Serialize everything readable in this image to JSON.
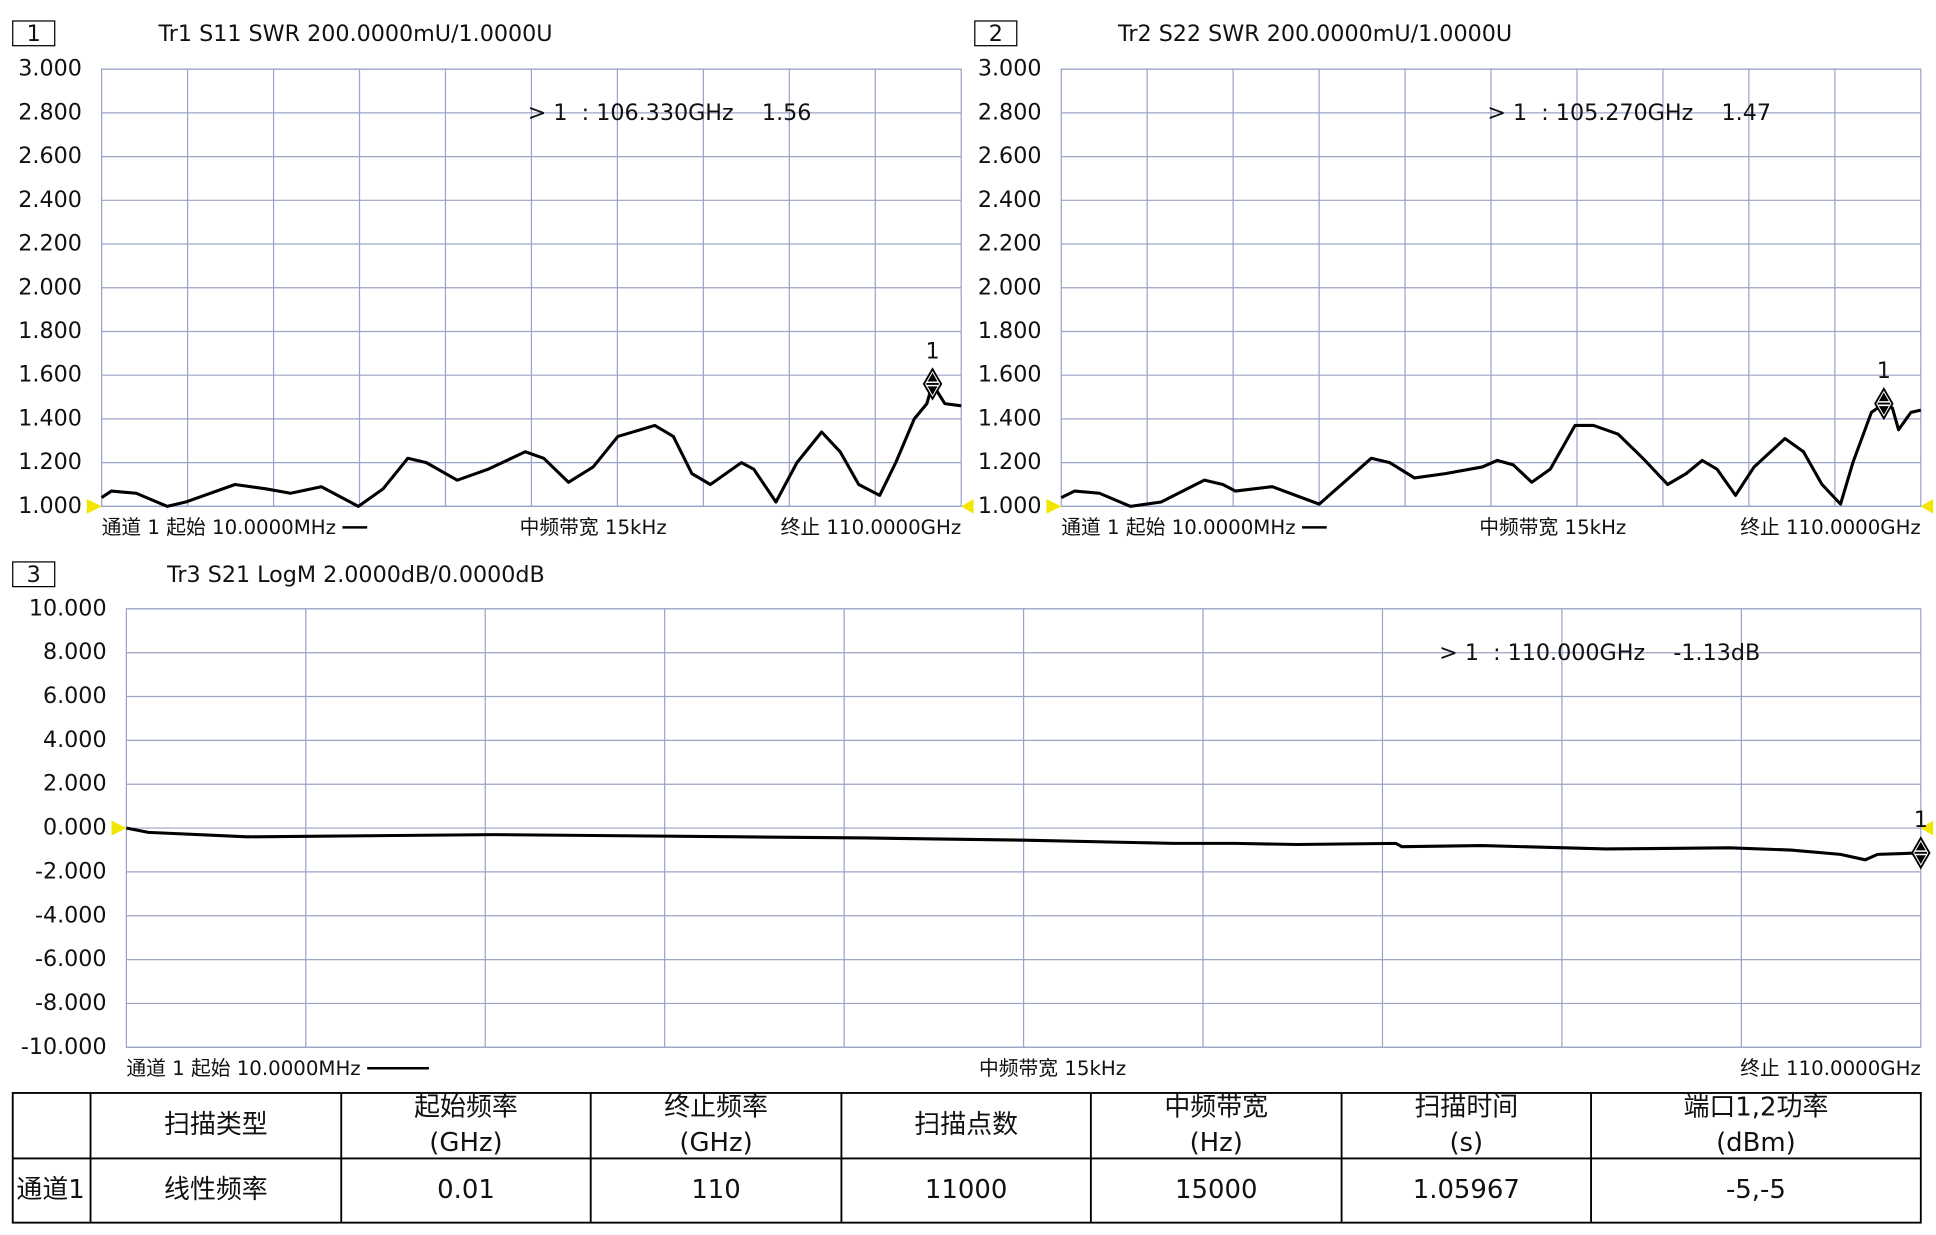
{
  "chart_data": [
    {
      "type": "line",
      "panel": "1",
      "title": "Tr1 S11 SWR 200.0000mU/1.0000U",
      "x_labels": {
        "start": "通道 1 起始 10.0000MHz",
        "center": "中频带宽 15kHz",
        "end": "终止 110.0000GHz"
      },
      "color": "#000000",
      "grid": true,
      "xlim": [
        0.01,
        110
      ],
      "ylim": [
        1,
        3
      ],
      "yticks": [
        {
          "value": 1,
          "label": "1.000"
        },
        {
          "value": 1.2,
          "label": "1.200"
        },
        {
          "value": 1.4,
          "label": "1.400"
        },
        {
          "value": 1.6,
          "label": "1.600"
        },
        {
          "value": 1.8,
          "label": "1.800"
        },
        {
          "value": 2,
          "label": "2.000"
        },
        {
          "value": 2.2,
          "label": "2.200"
        },
        {
          "value": 2.4,
          "label": "2.400"
        },
        {
          "value": 2.6,
          "label": "2.600"
        },
        {
          "value": 2.8,
          "label": "2.800"
        },
        {
          "value": 3,
          "label": "3.000"
        }
      ],
      "x": [
        0.01,
        1.26,
        4.43,
        8.38,
        10.75,
        17.07,
        21.02,
        24.18,
        28.13,
        32.87,
        36.03,
        39.19,
        41.56,
        45.51,
        49.47,
        54.21,
        56.58,
        59.74,
        62.9,
        66.06,
        70.8,
        73.17,
        75.54,
        77.91,
        81.87,
        83.45,
        86.29,
        88.98,
        92.14,
        94.51,
        96.88,
        99.57,
        101.62,
        104.0,
        105.6,
        106.33,
        107.9,
        110
      ],
      "values": [
        1.04,
        1.07,
        1.06,
        1.0,
        1.02,
        1.1,
        1.08,
        1.06,
        1.09,
        1.0,
        1.08,
        1.22,
        1.2,
        1.12,
        1.17,
        1.25,
        1.22,
        1.11,
        1.18,
        1.32,
        1.37,
        1.32,
        1.15,
        1.1,
        1.2,
        1.17,
        1.02,
        1.2,
        1.34,
        1.25,
        1.1,
        1.05,
        1.2,
        1.4,
        1.47,
        1.56,
        1.47,
        1.46
      ],
      "marker": {
        "label": "1",
        "x": 106.33,
        "value": 1.56,
        "text": "> 1  : 106.330GHz    1.56"
      }
    },
    {
      "type": "line",
      "panel": "2",
      "title": "Tr2 S22 SWR 200.0000mU/1.0000U",
      "x_labels": {
        "start": "通道 1 起始 10.0000MHz",
        "center": "中频带宽 15kHz",
        "end": "终止 110.0000GHz"
      },
      "color": "#000000",
      "grid": true,
      "xlim": [
        0.01,
        110
      ],
      "ylim": [
        1,
        3
      ],
      "yticks": [
        {
          "value": 1,
          "label": "1.000"
        },
        {
          "value": 1.2,
          "label": "1.200"
        },
        {
          "value": 1.4,
          "label": "1.400"
        },
        {
          "value": 1.6,
          "label": "1.600"
        },
        {
          "value": 1.8,
          "label": "1.800"
        },
        {
          "value": 2,
          "label": "2.000"
        },
        {
          "value": 2.2,
          "label": "2.200"
        },
        {
          "value": 2.4,
          "label": "2.400"
        },
        {
          "value": 2.6,
          "label": "2.600"
        },
        {
          "value": 2.8,
          "label": "2.800"
        },
        {
          "value": 3,
          "label": "3.000"
        }
      ],
      "x": [
        0.01,
        1.74,
        4.9,
        8.85,
        12.8,
        18.33,
        20.7,
        22.28,
        27.02,
        33.03,
        36.5,
        39.67,
        42.04,
        45.2,
        49.15,
        53.9,
        55.79,
        57.85,
        60.22,
        62.59,
        65.75,
        68.12,
        71.28,
        74.45,
        77.61,
        79.98,
        82.03,
        83.93,
        86.3,
        88.67,
        92.62,
        94.99,
        97.36,
        99.73,
        101.31,
        103.68,
        105.27,
        106.37,
        107.16,
        108.74,
        110
      ],
      "values": [
        1.04,
        1.07,
        1.06,
        1.0,
        1.02,
        1.12,
        1.1,
        1.07,
        1.09,
        1.01,
        1.12,
        1.22,
        1.2,
        1.13,
        1.15,
        1.18,
        1.21,
        1.19,
        1.11,
        1.17,
        1.37,
        1.37,
        1.33,
        1.22,
        1.1,
        1.15,
        1.21,
        1.17,
        1.05,
        1.18,
        1.31,
        1.25,
        1.1,
        1.01,
        1.2,
        1.43,
        1.47,
        1.45,
        1.35,
        1.43,
        1.44
      ],
      "marker": {
        "label": "1",
        "x": 105.27,
        "value": 1.47,
        "text": "> 1  : 105.270GHz    1.47"
      }
    },
    {
      "type": "line",
      "panel": "3",
      "title": "Tr3 S21 LogM 2.0000dB/0.0000dB",
      "x_labels": {
        "start": "通道 1 起始 10.0000MHz",
        "center": "中频带宽 15kHz",
        "end": "终止 110.0000GHz"
      },
      "color": "#000000",
      "grid": true,
      "xlim": [
        0.01,
        110
      ],
      "ylim": [
        -10,
        10
      ],
      "yticks": [
        {
          "value": -10,
          "label": "-10.000"
        },
        {
          "value": -8,
          "label": "-8.000"
        },
        {
          "value": -6,
          "label": "-6.000"
        },
        {
          "value": -4,
          "label": "-4.000"
        },
        {
          "value": -2,
          "label": "-2.000"
        },
        {
          "value": 0,
          "label": "0.000"
        },
        {
          "value": 2,
          "label": "2.000"
        },
        {
          "value": 4,
          "label": "4.000"
        },
        {
          "value": 6,
          "label": "6.000"
        },
        {
          "value": 8,
          "label": "8.000"
        },
        {
          "value": 10,
          "label": "10.000"
        }
      ],
      "x": [
        0.01,
        1.36,
        7.42,
        22.56,
        37.7,
        45.27,
        55.11,
        64.19,
        67.98,
        71.76,
        77.82,
        78.2,
        83.12,
        90.69,
        98.26,
        102.04,
        105.07,
        106.59,
        107.35,
        110
      ],
      "values": [
        0.0,
        -0.2,
        -0.4,
        -0.3,
        -0.4,
        -0.45,
        -0.55,
        -0.7,
        -0.7,
        -0.75,
        -0.7,
        -0.85,
        -0.8,
        -0.95,
        -0.9,
        -1.0,
        -1.2,
        -1.45,
        -1.2,
        -1.13
      ],
      "marker": {
        "label": "1",
        "x": 110,
        "value": -1.13,
        "text": "> 1  : 110.000GHz    -1.13dB"
      }
    }
  ],
  "table": {
    "header": [
      [
        "扫描类型"
      ],
      [
        "起始频率",
        "(GHz)"
      ],
      [
        "终止频率",
        "(GHz)"
      ],
      [
        "扫描点数"
      ],
      [
        "中频带宽",
        "(Hz)"
      ],
      [
        "扫描时间",
        "(s)"
      ],
      [
        "端口1,2功率",
        "(dBm)"
      ]
    ],
    "rows": [
      [
        "通道1",
        "线性频率",
        "0.01",
        "110",
        "11000",
        "15000",
        "1.05967",
        "-5,-5"
      ]
    ]
  }
}
